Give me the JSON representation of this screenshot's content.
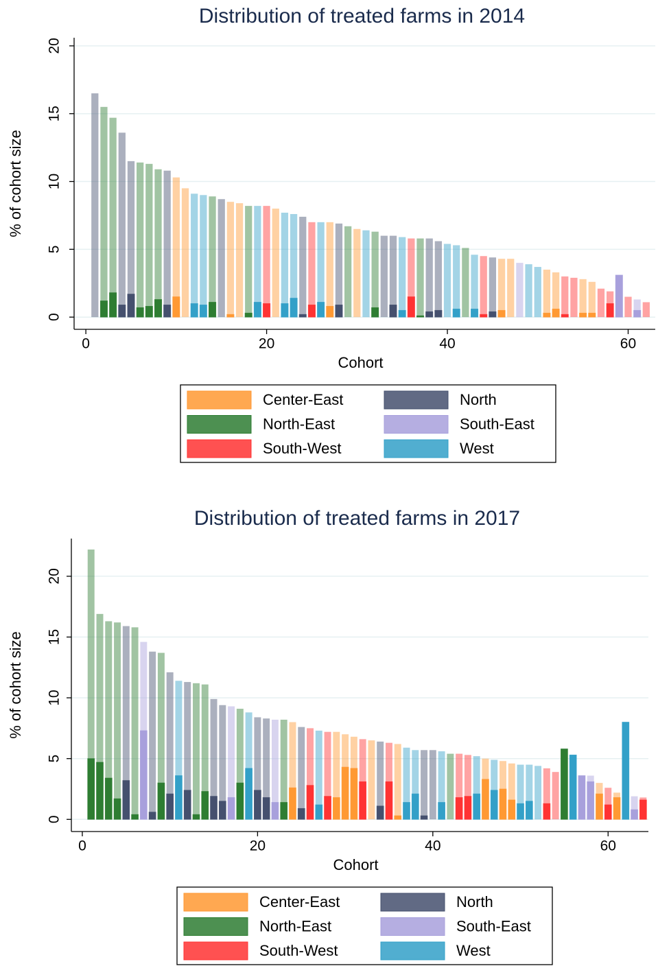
{
  "chart_data": [
    {
      "type": "bar",
      "title": "Distribution of treated farms in 2014",
      "x_label": "Cohort",
      "y_label": "% of cohort size",
      "xlim": [
        -1.3,
        63.0
      ],
      "ylim": [
        -0.9,
        20.6
      ],
      "xticks": [
        0,
        20,
        40,
        60
      ],
      "yticks": [
        0,
        5,
        10,
        15,
        20
      ],
      "grid": true,
      "series": [
        {
          "name": "Center-East",
          "color": "#ff9933",
          "x": [
            10,
            11,
            16,
            17,
            21,
            27,
            30,
            46,
            47,
            51,
            52,
            55,
            56
          ],
          "values": [
            10.3,
            9.5,
            8.5,
            8.4,
            8.0,
            7.0,
            6.5,
            4.3,
            4.3,
            3.5,
            3.3,
            2.8,
            2.6
          ],
          "treated_values": [
            1.5,
            0,
            0.2,
            0,
            0,
            0.8,
            0,
            0.5,
            0,
            0.3,
            0.6,
            0.3,
            0.3
          ]
        },
        {
          "name": "North-East",
          "color": "#2e7d32",
          "x": [
            2,
            3,
            6,
            7,
            8,
            14,
            18,
            29,
            32,
            37,
            42
          ],
          "values": [
            15.5,
            14.7,
            11.4,
            11.3,
            10.9,
            8.9,
            8.2,
            6.7,
            6.3,
            5.8,
            5.1
          ],
          "treated_values": [
            1.2,
            1.8,
            0.7,
            0.8,
            1.3,
            1.1,
            0.3,
            0,
            0.7,
            0.1,
            0
          ]
        },
        {
          "name": "South-West",
          "color": "#ff3333",
          "x": [
            20,
            25,
            36,
            44,
            53,
            54,
            57,
            58,
            60,
            62
          ],
          "values": [
            8.2,
            7.0,
            5.8,
            4.5,
            3.0,
            2.9,
            2.1,
            1.9,
            1.5,
            1.1
          ],
          "treated_values": [
            1.0,
            0.9,
            1.5,
            0.2,
            0.2,
            0,
            0,
            1.0,
            0,
            0
          ]
        },
        {
          "name": "North",
          "color": "#45506e",
          "x": [
            1,
            4,
            5,
            9,
            15,
            24,
            28,
            33,
            34,
            38,
            39,
            45
          ],
          "values": [
            16.5,
            13.6,
            11.5,
            10.8,
            8.7,
            7.4,
            6.9,
            6.0,
            6.0,
            5.8,
            5.6,
            4.4
          ],
          "treated_values": [
            0,
            0.9,
            1.7,
            0.9,
            0,
            0.2,
            0.9,
            0,
            0.9,
            0.4,
            0.5,
            0.4
          ]
        },
        {
          "name": "South-East",
          "color": "#a8a0dc",
          "x": [
            48,
            59,
            61
          ],
          "values": [
            4.0,
            3.1,
            1.3
          ],
          "treated_values": [
            0,
            3.1,
            0.5
          ]
        },
        {
          "name": "West",
          "color": "#33a0c8",
          "x": [
            12,
            13,
            19,
            22,
            23,
            26,
            31,
            35,
            40,
            41,
            43,
            49,
            50
          ],
          "values": [
            9.1,
            9.0,
            8.2,
            7.7,
            7.6,
            7.0,
            6.4,
            5.9,
            5.4,
            5.3,
            4.6,
            3.9,
            3.7
          ],
          "treated_values": [
            1.0,
            0.9,
            1.1,
            1.0,
            1.4,
            1.1,
            0,
            0.5,
            0,
            0.6,
            0.6,
            0,
            0
          ]
        }
      ]
    },
    {
      "type": "bar",
      "title": "Distribution of treated farms in 2017",
      "x_label": "Cohort",
      "y_label": "% of cohort size",
      "xlim": [
        -1.25,
        64.6
      ],
      "ylim": [
        -1.0,
        23.1
      ],
      "xticks": [
        0,
        20,
        40,
        60
      ],
      "yticks": [
        0,
        5,
        10,
        15,
        20
      ],
      "grid": true,
      "series": [
        {
          "name": "Center-East",
          "color": "#ff9933",
          "x": [
            24,
            29,
            30,
            31,
            33,
            36,
            46,
            48,
            49,
            59,
            61
          ],
          "values": [
            8.0,
            7.2,
            7.0,
            6.8,
            6.5,
            6.2,
            5.0,
            4.8,
            4.6,
            3.0,
            2.2
          ],
          "treated_values": [
            2.6,
            1.8,
            4.3,
            4.2,
            0,
            0.3,
            3.3,
            2.5,
            1.6,
            2.1,
            1.8
          ]
        },
        {
          "name": "North-East",
          "color": "#2e7d32",
          "x": [
            1,
            2,
            3,
            4,
            6,
            9,
            13,
            14,
            18,
            23,
            42,
            55
          ],
          "values": [
            22.2,
            16.9,
            16.3,
            16.2,
            15.8,
            13.7,
            11.2,
            11.1,
            9.1,
            8.2,
            5.4,
            5.8
          ],
          "treated_values": [
            5.0,
            4.7,
            3.4,
            1.7,
            0.4,
            3.0,
            0.4,
            2.3,
            3.0,
            1.4,
            0,
            5.8
          ]
        },
        {
          "name": "South-West",
          "color": "#ff3333",
          "x": [
            26,
            28,
            32,
            35,
            43,
            44,
            53,
            54,
            60,
            64
          ],
          "values": [
            7.5,
            7.2,
            6.6,
            6.3,
            5.4,
            5.3,
            4.2,
            3.9,
            2.6,
            1.8
          ],
          "treated_values": [
            2.8,
            1.9,
            3.1,
            3.1,
            1.8,
            1.9,
            1.3,
            0,
            1.2,
            1.6
          ]
        },
        {
          "name": "North",
          "color": "#45506e",
          "x": [
            5,
            8,
            10,
            12,
            15,
            16,
            20,
            21,
            25,
            34,
            39,
            40
          ],
          "values": [
            15.9,
            13.8,
            12.1,
            11.3,
            9.9,
            9.4,
            8.4,
            8.3,
            7.6,
            6.4,
            5.7,
            5.7
          ],
          "treated_values": [
            3.2,
            0.6,
            2.1,
            2.4,
            1.9,
            1.5,
            2.4,
            1.8,
            0.9,
            1.1,
            0.3,
            0
          ]
        },
        {
          "name": "South-East",
          "color": "#a8a0dc",
          "x": [
            7,
            17,
            22,
            57,
            58,
            63
          ],
          "values": [
            14.6,
            9.3,
            8.2,
            3.6,
            3.6,
            1.9
          ],
          "treated_values": [
            7.3,
            1.8,
            1.4,
            3.6,
            3.1,
            0.8
          ]
        },
        {
          "name": "West",
          "color": "#33a0c8",
          "x": [
            11,
            19,
            27,
            37,
            38,
            41,
            45,
            47,
            50,
            51,
            52,
            56,
            62
          ],
          "values": [
            11.4,
            8.8,
            7.3,
            5.9,
            5.7,
            5.6,
            5.2,
            4.9,
            4.5,
            4.5,
            4.4,
            5.3,
            8.0
          ],
          "treated_values": [
            3.6,
            4.2,
            1.2,
            1.4,
            2.1,
            1.4,
            2.1,
            2.4,
            1.3,
            1.5,
            0,
            5.3,
            8.0
          ]
        }
      ]
    }
  ]
}
